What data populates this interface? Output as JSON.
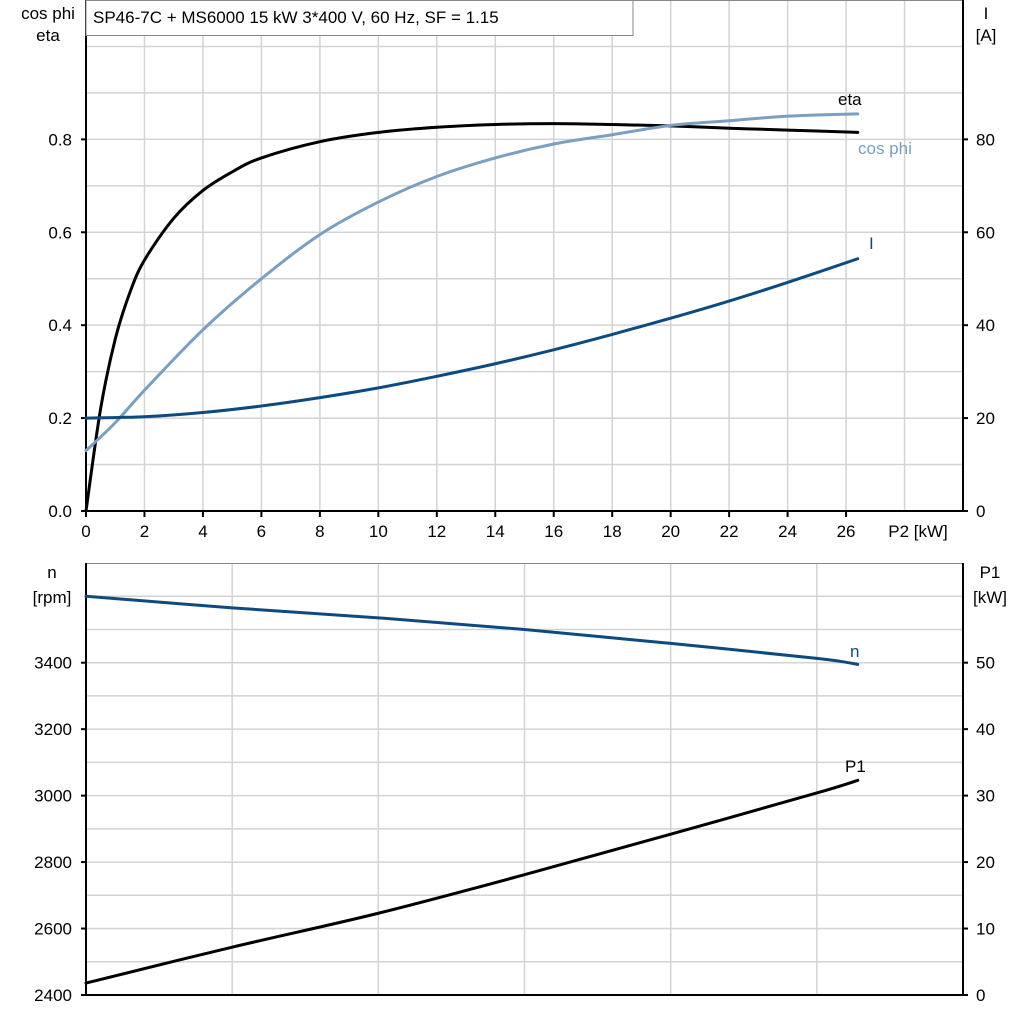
{
  "title": "SP46-7C + MS6000   15 kW   3*400 V, 60 Hz, SF = 1.15",
  "chart_data": [
    {
      "type": "line",
      "xlabel": "P2 [kW]",
      "xlim": [
        0,
        30
      ],
      "xticks": [
        0,
        2,
        4,
        6,
        8,
        10,
        12,
        14,
        16,
        18,
        20,
        22,
        24,
        26
      ],
      "x_grid_step": 2,
      "grid": true,
      "ylabel_left": [
        "cos phi",
        "eta"
      ],
      "ylim_left": [
        0,
        1.1
      ],
      "yticks_left": [
        "0.0",
        "0.2",
        "0.4",
        "0.6",
        "0.8"
      ],
      "y_grid_step_left": 0.1,
      "ylabel_right": [
        "I",
        "[A]"
      ],
      "ylim_right": [
        0,
        110
      ],
      "yticks_right": [
        "0",
        "20",
        "40",
        "60",
        "80"
      ],
      "series": [
        {
          "name": "eta",
          "axis": "left",
          "color": "#000000",
          "x": [
            0,
            0.5,
            1,
            1.5,
            2,
            3,
            4,
            5,
            6,
            8,
            10,
            12,
            14,
            16,
            18,
            20,
            22,
            24,
            26.4
          ],
          "y": [
            0,
            0.22,
            0.37,
            0.47,
            0.54,
            0.63,
            0.69,
            0.73,
            0.76,
            0.795,
            0.815,
            0.826,
            0.832,
            0.834,
            0.832,
            0.829,
            0.824,
            0.82,
            0.815
          ]
        },
        {
          "name": "cos phi",
          "axis": "left",
          "color": "#7a9fc0",
          "x": [
            0,
            1,
            2,
            4,
            6,
            8,
            10,
            12,
            14,
            16,
            18,
            20,
            22,
            24,
            26.4
          ],
          "y": [
            0.13,
            0.19,
            0.26,
            0.39,
            0.5,
            0.595,
            0.665,
            0.72,
            0.76,
            0.79,
            0.81,
            0.83,
            0.84,
            0.85,
            0.855
          ]
        },
        {
          "name": "I",
          "axis": "right",
          "color": "#0d4a80",
          "x": [
            0,
            2,
            4,
            6,
            8,
            10,
            12,
            14,
            16,
            18,
            20,
            22,
            24,
            26.4
          ],
          "y": [
            20,
            20.3,
            21.2,
            22.6,
            24.4,
            26.5,
            29,
            31.7,
            34.7,
            38,
            41.5,
            45.2,
            49.2,
            54.3
          ]
        }
      ]
    },
    {
      "type": "line",
      "xlim": [
        0,
        30
      ],
      "x_grid_step": 5,
      "grid": true,
      "ylabel_left": [
        "n",
        "[rpm]"
      ],
      "ylim_left": [
        2400,
        3700
      ],
      "yticks_left": [
        "2400",
        "2600",
        "2800",
        "3000",
        "3200",
        "3400"
      ],
      "y_grid_step_left": 100,
      "ylabel_right": [
        "P1",
        "[kW]"
      ],
      "ylim_right": [
        0,
        65
      ],
      "yticks_right": [
        "0",
        "10",
        "20",
        "30",
        "40",
        "50"
      ],
      "series": [
        {
          "name": "n",
          "axis": "left",
          "color": "#0d4a80",
          "x": [
            0,
            5,
            10,
            15,
            20,
            25,
            26.4
          ],
          "y": [
            3600,
            3565,
            3535,
            3500,
            3458,
            3413,
            3395
          ]
        },
        {
          "name": "P1",
          "axis": "right",
          "color": "#000000",
          "x": [
            0,
            5,
            10,
            15,
            20,
            25,
            26.4
          ],
          "y": [
            1.8,
            7.2,
            12.3,
            18.1,
            24.2,
            30.4,
            32.3
          ]
        }
      ]
    }
  ]
}
